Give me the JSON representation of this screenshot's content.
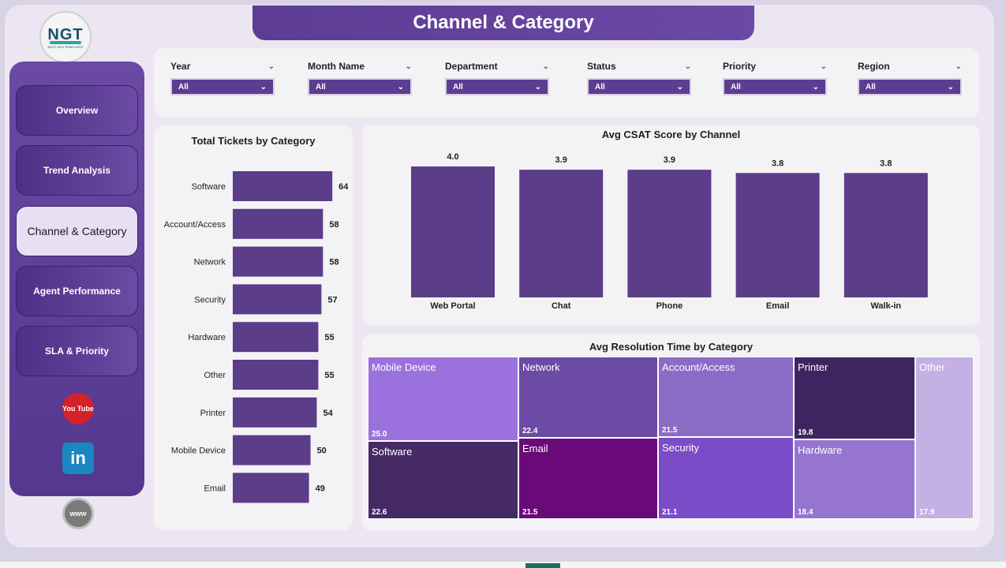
{
  "header": {
    "title": "Channel & Category"
  },
  "logo": {
    "text": "NGT",
    "subtitle": "NEXT GEN TEMPLATES"
  },
  "sidebar": {
    "items": [
      {
        "label": "Overview",
        "active": false
      },
      {
        "label": "Trend Analysis",
        "active": false
      },
      {
        "label": "Channel & Category",
        "active": true
      },
      {
        "label": "Agent Performance",
        "active": false
      },
      {
        "label": "SLA & Priority",
        "active": false
      }
    ],
    "social": [
      {
        "name": "youtube-icon",
        "text": "You Tube"
      },
      {
        "name": "linkedin-icon",
        "text": "in"
      },
      {
        "name": "website-icon",
        "text": "www"
      }
    ]
  },
  "filters": [
    {
      "label": "Year",
      "value": "All"
    },
    {
      "label": "Month Name",
      "value": "All"
    },
    {
      "label": "Department",
      "value": "All"
    },
    {
      "label": "Status",
      "value": "All"
    },
    {
      "label": "Priority",
      "value": "All"
    },
    {
      "label": "Region",
      "value": "All"
    }
  ],
  "colors": {
    "bar": "#5b3d8a",
    "accent": "#5d3c93"
  },
  "chart_data": [
    {
      "type": "bar",
      "orientation": "horizontal",
      "title": "Total Tickets by Category",
      "categories": [
        "Software",
        "Account/Access",
        "Network",
        "Security",
        "Hardware",
        "Other",
        "Printer",
        "Mobile Device",
        "Email"
      ],
      "values": [
        64,
        58,
        58,
        57,
        55,
        55,
        54,
        50,
        49
      ],
      "xlim": [
        0,
        70
      ],
      "grid": false
    },
    {
      "type": "bar",
      "title": "Avg CSAT Score by Channel",
      "categories": [
        "Web Portal",
        "Chat",
        "Phone",
        "Email",
        "Walk-in"
      ],
      "values": [
        4.0,
        3.9,
        3.9,
        3.8,
        3.8
      ],
      "labels": [
        "4.0",
        "3.9",
        "3.9",
        "3.8",
        "3.8"
      ],
      "ylim": [
        0,
        4.0
      ],
      "grid": false
    },
    {
      "type": "treemap",
      "title": "Avg Resolution Time by Category",
      "items": [
        {
          "name": "Mobile Device",
          "value": 25.0,
          "label": "25.0",
          "color": "#9b72dd"
        },
        {
          "name": "Software",
          "value": 22.6,
          "label": "22.6",
          "color": "#452a66"
        },
        {
          "name": "Network",
          "value": 22.4,
          "label": "22.4",
          "color": "#6b4ba3"
        },
        {
          "name": "Email",
          "value": 21.5,
          "label": "21.5",
          "color": "#6a0a7a"
        },
        {
          "name": "Account/Access",
          "value": 21.5,
          "label": "21.5",
          "color": "#8a6cc7"
        },
        {
          "name": "Security",
          "value": 21.1,
          "label": "21.1",
          "color": "#7a4cc7"
        },
        {
          "name": "Printer",
          "value": 19.8,
          "label": "19.8",
          "color": "#3d2560"
        },
        {
          "name": "Hardware",
          "value": 18.4,
          "label": "18.4",
          "color": "#9575d0"
        },
        {
          "name": "Other",
          "value": 17.9,
          "label": "17.9",
          "color": "#c4b0e3"
        }
      ]
    }
  ]
}
